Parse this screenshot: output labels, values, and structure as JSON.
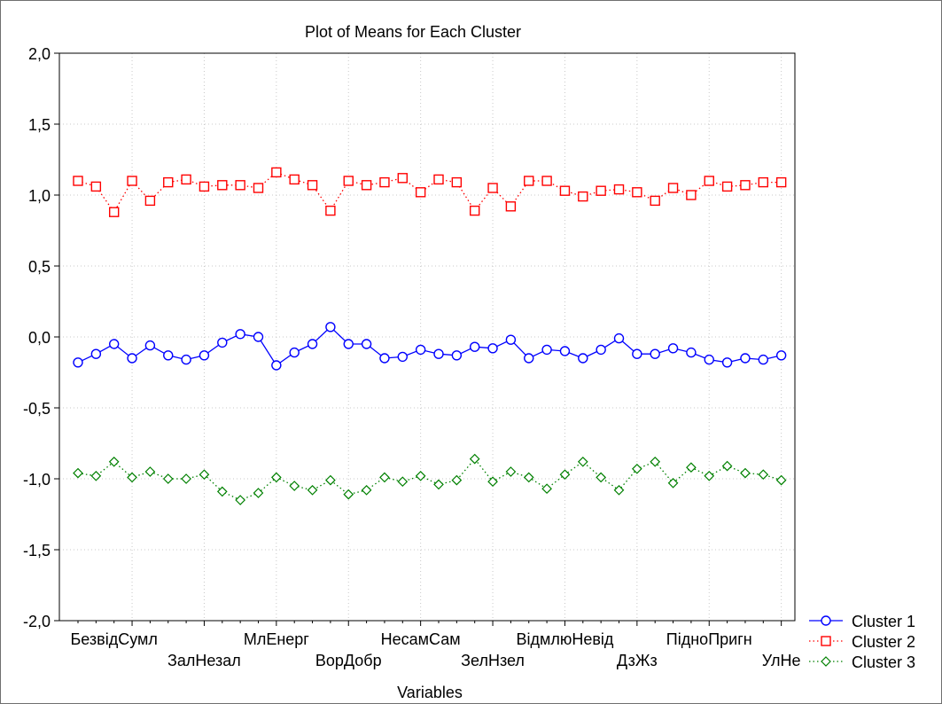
{
  "chart_data": {
    "type": "line",
    "title": "Plot of Means for Each Cluster",
    "xlabel": "Variables",
    "ylabel": "",
    "ylim": [
      -2.0,
      2.0
    ],
    "yticks": [
      2.0,
      1.5,
      1.0,
      0.5,
      0.0,
      -0.5,
      -1.0,
      -1.5,
      -2.0
    ],
    "ytick_labels": [
      "2,0",
      "1,5",
      "1,0",
      "0,5",
      "0,0",
      "-0,5",
      "-1,0",
      "-1,5",
      "-2,0"
    ],
    "grid": true,
    "legend_position": "bottom-right",
    "category_count": 40,
    "category_labels": [
      {
        "index": 2,
        "label": "БезвідСумл",
        "row": 1
      },
      {
        "index": 7,
        "label": "ЗалНезал",
        "row": 2
      },
      {
        "index": 11,
        "label": "МлЕнерг",
        "row": 1
      },
      {
        "index": 15,
        "label": "ВорДобр",
        "row": 2
      },
      {
        "index": 19,
        "label": "НесамСам",
        "row": 1
      },
      {
        "index": 23,
        "label": "ЗелНзел",
        "row": 2
      },
      {
        "index": 27,
        "label": "ВідмлюНевід",
        "row": 1
      },
      {
        "index": 31,
        "label": "ДзЖз",
        "row": 2
      },
      {
        "index": 35,
        "label": "ПідноПригн",
        "row": 1
      },
      {
        "index": 39,
        "label": "УлНе",
        "row": 2
      }
    ],
    "series": [
      {
        "name": "Cluster  1",
        "color": "#0000ff",
        "marker": "circle",
        "line": "solid",
        "values": [
          -0.18,
          -0.12,
          -0.05,
          -0.15,
          -0.06,
          -0.13,
          -0.16,
          -0.13,
          -0.04,
          0.02,
          0.0,
          -0.2,
          -0.11,
          -0.05,
          0.07,
          -0.05,
          -0.05,
          -0.15,
          -0.14,
          -0.09,
          -0.12,
          -0.13,
          -0.07,
          -0.08,
          -0.02,
          -0.15,
          -0.09,
          -0.1,
          -0.15,
          -0.09,
          -0.01,
          -0.12,
          -0.12,
          -0.08,
          -0.11,
          -0.16,
          -0.18,
          -0.15,
          -0.16,
          -0.13
        ]
      },
      {
        "name": "Cluster  2",
        "color": "#ff0000",
        "marker": "square",
        "line": "dotted",
        "values": [
          1.1,
          1.06,
          0.88,
          1.1,
          0.96,
          1.09,
          1.11,
          1.06,
          1.07,
          1.07,
          1.05,
          1.16,
          1.11,
          1.07,
          0.89,
          1.1,
          1.07,
          1.09,
          1.12,
          1.02,
          1.11,
          1.09,
          0.89,
          1.05,
          0.92,
          1.1,
          1.1,
          1.03,
          0.99,
          1.03,
          1.04,
          1.02,
          0.96,
          1.05,
          1.0,
          1.1,
          1.06,
          1.07,
          1.09,
          1.09
        ]
      },
      {
        "name": "Cluster  3",
        "color": "#008000",
        "marker": "diamond",
        "line": "dotted",
        "values": [
          -0.96,
          -0.98,
          -0.88,
          -0.99,
          -0.95,
          -1.0,
          -1.0,
          -0.97,
          -1.09,
          -1.15,
          -1.1,
          -0.99,
          -1.05,
          -1.08,
          -1.01,
          -1.11,
          -1.08,
          -0.99,
          -1.02,
          -0.98,
          -1.04,
          -1.01,
          -0.86,
          -1.02,
          -0.95,
          -0.99,
          -1.07,
          -0.97,
          -0.88,
          -0.99,
          -1.08,
          -0.93,
          -0.88,
          -1.03,
          -0.92,
          -0.98,
          -0.91,
          -0.96,
          -0.97,
          -1.01
        ]
      }
    ]
  }
}
